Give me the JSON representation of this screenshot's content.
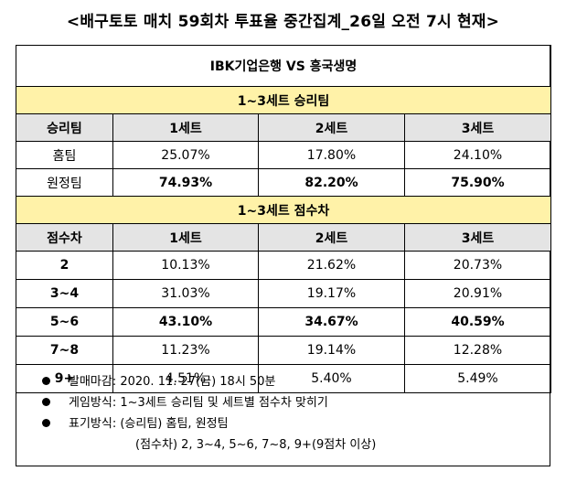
{
  "title": "<배구토토 매치 59회차 투표율 중간집계_26일 오전 7시 현재>",
  "match": "IBK기업은행 VS 흥국생명",
  "section1": {
    "title": "1~3세트 승리팀",
    "headers": [
      "승리팀",
      "1세트",
      "2세트",
      "3세트"
    ],
    "rows": [
      {
        "label": "홈팀",
        "values": [
          "25.07%",
          "17.80%",
          "24.10%"
        ]
      },
      {
        "label": "원정팀",
        "values": [
          "74.93%",
          "82.20%",
          "75.90%"
        ]
      }
    ]
  },
  "section2": {
    "title": "1~3세트 점수차",
    "headers": [
      "점수차",
      "1세트",
      "2세트",
      "3세트"
    ],
    "rows": [
      {
        "label": "2",
        "values": [
          "10.13%",
          "21.62%",
          "20.73%"
        ]
      },
      {
        "label": "3~4",
        "values": [
          "31.03%",
          "19.17%",
          "20.91%"
        ]
      },
      {
        "label": "5~6",
        "values": [
          "43.10%",
          "34.67%",
          "40.59%"
        ]
      },
      {
        "label": "7~8",
        "values": [
          "11.23%",
          "19.14%",
          "12.28%"
        ]
      },
      {
        "label": "9+",
        "values": [
          "4.51%",
          "5.40%",
          "5.49%"
        ]
      }
    ]
  },
  "notes": [
    "발매마감: 2020. 11. 27(금) 18시 50분",
    "게임방식: 1~3세트 승리팀 및 세트별 점수차 맞히기",
    "표기방식: (승리팀) 홈팀, 원정팀",
    "(점수차) 2, 3~4, 5~6, 7~8, 9+(9점차 이상)"
  ]
}
